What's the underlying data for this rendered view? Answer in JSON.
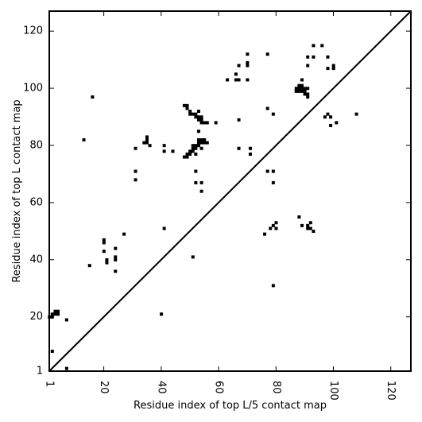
{
  "chart_data": {
    "type": "scatter",
    "title": "",
    "xlabel": "Residue index of top L/5 contact map",
    "ylabel": "Residue index of top L contact map",
    "xlim": [
      1,
      127
    ],
    "ylim": [
      1,
      127
    ],
    "xticks": [
      1,
      20,
      40,
      60,
      80,
      100,
      120
    ],
    "yticks": [
      1,
      20,
      40,
      60,
      80,
      100,
      120
    ],
    "xtick_labels": [
      "1",
      "20",
      "40",
      "60",
      "80",
      "100",
      "120"
    ],
    "ytick_labels": [
      "1",
      "20",
      "40",
      "60",
      "80",
      "100",
      "120"
    ],
    "xtick_rotation": 90,
    "grid": false,
    "marker": "square",
    "marker_color": "#000000",
    "diagonal": {
      "from": [
        1,
        1
      ],
      "to": [
        127,
        127
      ]
    },
    "series": [
      {
        "region": "upper-left",
        "points": [
          [
            1,
            20
          ],
          [
            2,
            20
          ],
          [
            2,
            21
          ],
          [
            3,
            21
          ],
          [
            3,
            22
          ],
          [
            4,
            21
          ],
          [
            4,
            22
          ],
          [
            7,
            19
          ],
          [
            2,
            8
          ],
          [
            7,
            2
          ],
          [
            13,
            82
          ],
          [
            16,
            97
          ],
          [
            20,
            47
          ],
          [
            20,
            46
          ],
          [
            20,
            43
          ],
          [
            21,
            39
          ],
          [
            21,
            40
          ],
          [
            24,
            40
          ],
          [
            24,
            41
          ],
          [
            24,
            44
          ],
          [
            24,
            36
          ],
          [
            27,
            49
          ],
          [
            15,
            38
          ],
          [
            31,
            79
          ],
          [
            31,
            71
          ],
          [
            31,
            68
          ],
          [
            34,
            81
          ],
          [
            35,
            82
          ],
          [
            35,
            83
          ],
          [
            35,
            81
          ],
          [
            36,
            80
          ],
          [
            40,
            21
          ],
          [
            41,
            51
          ],
          [
            41,
            80
          ],
          [
            41,
            78
          ],
          [
            44,
            78
          ],
          [
            51,
            41
          ],
          [
            48,
            94
          ],
          [
            49,
            94
          ],
          [
            49,
            93
          ],
          [
            50,
            92
          ],
          [
            50,
            91
          ],
          [
            51,
            91
          ],
          [
            52,
            91
          ],
          [
            52,
            90
          ],
          [
            53,
            92
          ],
          [
            53,
            90
          ],
          [
            53,
            89
          ],
          [
            54,
            90
          ],
          [
            54,
            89
          ],
          [
            54,
            88
          ],
          [
            55,
            88
          ],
          [
            56,
            88
          ],
          [
            59,
            88
          ],
          [
            48,
            76
          ],
          [
            49,
            76
          ],
          [
            49,
            77
          ],
          [
            50,
            77
          ],
          [
            50,
            78
          ],
          [
            51,
            78
          ],
          [
            51,
            79
          ],
          [
            51,
            80
          ],
          [
            52,
            77
          ],
          [
            52,
            80
          ],
          [
            52,
            79
          ],
          [
            53,
            81
          ],
          [
            53,
            82
          ],
          [
            53,
            80
          ],
          [
            54,
            82
          ],
          [
            54,
            81
          ],
          [
            54,
            79
          ],
          [
            55,
            82
          ],
          [
            55,
            81
          ],
          [
            56,
            81
          ],
          [
            53,
            85
          ],
          [
            52,
            71
          ],
          [
            52,
            67
          ],
          [
            54,
            67
          ],
          [
            54,
            64
          ],
          [
            63,
            103
          ],
          [
            66,
            103
          ],
          [
            66,
            105
          ],
          [
            67,
            103
          ],
          [
            67,
            108
          ],
          [
            67,
            89
          ],
          [
            67,
            79
          ],
          [
            70,
            112
          ],
          [
            70,
            109
          ],
          [
            70,
            108
          ],
          [
            70,
            103
          ],
          [
            71,
            79
          ],
          [
            71,
            77
          ],
          [
            77,
            112
          ],
          [
            77,
            93
          ],
          [
            79,
            91
          ],
          [
            87,
            99
          ],
          [
            87,
            100
          ],
          [
            88,
            99
          ],
          [
            88,
            100
          ],
          [
            88,
            101
          ],
          [
            89,
            99
          ],
          [
            89,
            100
          ],
          [
            89,
            101
          ],
          [
            89,
            103
          ],
          [
            90,
            98
          ],
          [
            90,
            99
          ],
          [
            90,
            100
          ],
          [
            91,
            97
          ],
          [
            91,
            98
          ],
          [
            91,
            100
          ],
          [
            91,
            108
          ],
          [
            91,
            111
          ],
          [
            93,
            111
          ],
          [
            93,
            115
          ],
          [
            96,
            115
          ],
          [
            98,
            111
          ],
          [
            98,
            107
          ],
          [
            98,
            91
          ],
          [
            97,
            90
          ],
          [
            99,
            90
          ],
          [
            99,
            87
          ],
          [
            100,
            107
          ],
          [
            100,
            108
          ],
          [
            101,
            88
          ],
          [
            108,
            91
          ]
        ]
      },
      {
        "region": "lower-right",
        "points": [
          [
            76,
            49
          ],
          [
            77,
            71
          ],
          [
            78,
            51
          ],
          [
            79,
            52
          ],
          [
            79,
            71
          ],
          [
            79,
            67
          ],
          [
            79,
            31
          ],
          [
            80,
            53
          ],
          [
            80,
            51
          ],
          [
            88,
            55
          ],
          [
            89,
            52
          ],
          [
            91,
            52
          ],
          [
            91,
            51
          ],
          [
            92,
            53
          ],
          [
            92,
            51
          ],
          [
            93,
            50
          ]
        ]
      }
    ]
  }
}
